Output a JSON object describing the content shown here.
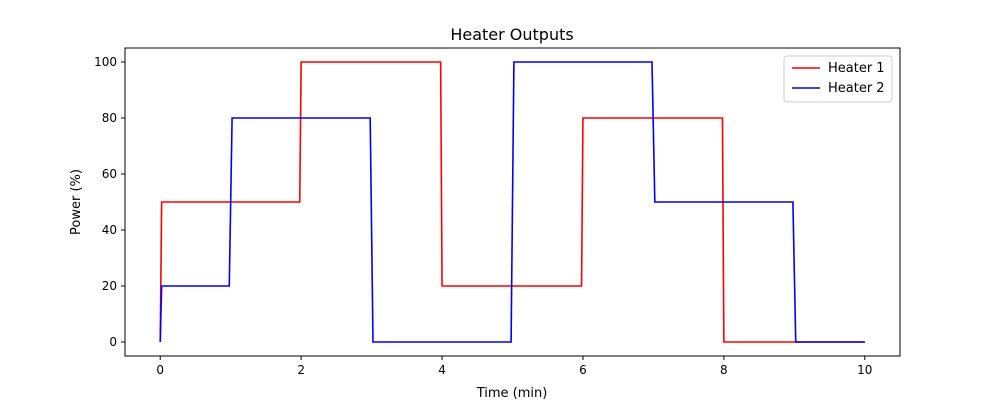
{
  "chart_data": {
    "type": "line",
    "title": "Heater Outputs",
    "xlabel": "Time (min)",
    "ylabel": "Power (%)",
    "xlim": [
      -0.5,
      10.5
    ],
    "ylim": [
      -5,
      105
    ],
    "xticks": [
      0,
      2,
      4,
      6,
      8,
      10
    ],
    "yticks": [
      0,
      20,
      40,
      60,
      80,
      100
    ],
    "grid": false,
    "legend_position": "top-right",
    "series": [
      {
        "name": "Heater 1",
        "color": "#ff0000",
        "x": [
          0,
          0.02,
          1.98,
          2.0,
          3.98,
          4.0,
          5.98,
          6.0,
          7.98,
          8.0,
          10.0
        ],
        "y": [
          0,
          50,
          50,
          100,
          100,
          20,
          20,
          80,
          80,
          0,
          0
        ]
      },
      {
        "name": "Heater 2",
        "color": "#0000ff",
        "x": [
          0,
          0.02,
          0.98,
          1.02,
          2.98,
          3.02,
          4.98,
          5.02,
          6.98,
          7.02,
          8.98,
          9.02,
          10.0
        ],
        "y": [
          0,
          20,
          20,
          80,
          80,
          0,
          0,
          100,
          100,
          50,
          50,
          0,
          0
        ]
      }
    ]
  }
}
